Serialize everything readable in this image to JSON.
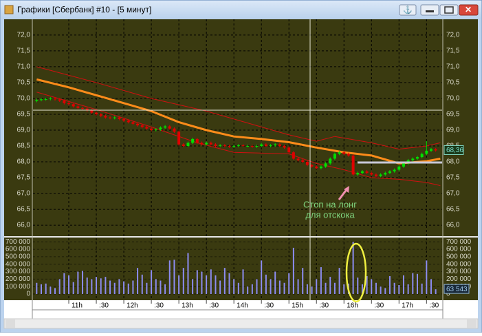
{
  "window": {
    "title": "Графики [Сбербанк] #10 - [5 минут]"
  },
  "annotation": {
    "lines": [
      "Стоп на лонг",
      "для отскока"
    ]
  },
  "chart_data": [
    {
      "type": "candlestick",
      "color_up": "#00e000",
      "color_down": "#e00000",
      "last_label": "68,36",
      "x": [
        625,
        630,
        635,
        640,
        645,
        650,
        655,
        660,
        665,
        670,
        675,
        680,
        685,
        690,
        695,
        700,
        705,
        710,
        715,
        720,
        725,
        730,
        735,
        740,
        745,
        750,
        755,
        760,
        765,
        770,
        775,
        780,
        785,
        790,
        795,
        800,
        805,
        810,
        815,
        820,
        825,
        830,
        835,
        840,
        845,
        850,
        855,
        860,
        865,
        870,
        875,
        880,
        885,
        890,
        895,
        900,
        905,
        910,
        915,
        920,
        925,
        930,
        935,
        940,
        945,
        950,
        955,
        960,
        965,
        970,
        975,
        980,
        985,
        990,
        995,
        1000,
        1005,
        1010,
        1015,
        1020,
        1025,
        1030,
        1035,
        1040,
        1045,
        1050,
        1055,
        1060
      ],
      "open": [
        69.92,
        69.95,
        69.97,
        69.98,
        70.0,
        69.97,
        69.93,
        69.85,
        69.82,
        69.75,
        69.7,
        69.68,
        69.62,
        69.55,
        69.5,
        69.45,
        69.4,
        69.38,
        69.4,
        69.35,
        69.3,
        69.25,
        69.2,
        69.15,
        69.1,
        69.05,
        69.0,
        69.02,
        69.08,
        69.12,
        69.05,
        68.95,
        68.55,
        68.5,
        68.6,
        68.72,
        68.6,
        68.55,
        68.6,
        68.55,
        68.5,
        68.52,
        68.5,
        68.48,
        68.5,
        68.52,
        68.5,
        68.5,
        68.48,
        68.5,
        68.55,
        68.5,
        68.52,
        68.55,
        68.5,
        68.45,
        68.3,
        68.1,
        68.05,
        68.0,
        67.9,
        67.85,
        67.8,
        67.85,
        67.95,
        68.1,
        68.25,
        68.3,
        68.25,
        68.2,
        67.6,
        67.65,
        67.7,
        67.65,
        67.6,
        67.55,
        67.6,
        67.65,
        67.7,
        67.75,
        67.85,
        67.95,
        68.05,
        68.1,
        68.15,
        68.25,
        68.35,
        68.4
      ],
      "high": [
        69.99,
        70.01,
        70.02,
        70.04,
        70.04,
        70.01,
        69.97,
        69.89,
        69.86,
        69.79,
        69.74,
        69.72,
        69.66,
        69.59,
        69.54,
        69.49,
        69.44,
        69.44,
        69.44,
        69.39,
        69.34,
        69.29,
        69.24,
        69.19,
        69.14,
        69.09,
        69.06,
        69.12,
        69.16,
        69.16,
        69.09,
        68.99,
        68.59,
        68.64,
        68.76,
        68.76,
        68.64,
        68.64,
        68.64,
        68.59,
        68.56,
        68.56,
        68.54,
        68.54,
        68.56,
        68.56,
        68.54,
        68.54,
        68.54,
        68.59,
        68.59,
        68.56,
        68.59,
        68.59,
        68.54,
        68.49,
        68.34,
        68.14,
        68.09,
        68.04,
        67.94,
        67.89,
        67.89,
        67.99,
        68.14,
        68.29,
        68.34,
        68.34,
        68.29,
        68.24,
        67.69,
        67.74,
        67.74,
        67.69,
        67.64,
        67.64,
        67.69,
        67.74,
        67.79,
        67.89,
        67.99,
        68.09,
        68.14,
        68.19,
        68.29,
        68.65,
        68.44,
        68.44
      ],
      "low": [
        69.88,
        69.91,
        69.93,
        69.94,
        69.93,
        69.89,
        69.81,
        69.78,
        69.71,
        69.66,
        69.64,
        69.58,
        69.51,
        69.46,
        69.41,
        69.36,
        69.34,
        69.34,
        69.31,
        69.26,
        69.21,
        69.16,
        69.11,
        69.06,
        69.01,
        68.96,
        68.96,
        68.98,
        69.04,
        69.01,
        68.91,
        68.51,
        68.46,
        68.46,
        68.56,
        68.56,
        68.51,
        68.51,
        68.51,
        68.46,
        68.46,
        68.46,
        68.44,
        68.44,
        68.46,
        68.46,
        68.46,
        68.44,
        68.44,
        68.46,
        68.46,
        68.46,
        68.48,
        68.46,
        68.41,
        68.26,
        68.06,
        68.01,
        67.96,
        67.86,
        67.81,
        67.76,
        67.76,
        67.81,
        67.91,
        68.06,
        68.21,
        68.21,
        68.16,
        67.56,
        67.56,
        67.61,
        67.61,
        67.56,
        67.51,
        67.51,
        67.56,
        67.61,
        67.66,
        67.71,
        67.81,
        67.91,
        68.01,
        68.06,
        68.11,
        68.21,
        68.31,
        68.32
      ],
      "close": [
        69.95,
        69.97,
        69.98,
        70.0,
        69.97,
        69.93,
        69.85,
        69.82,
        69.75,
        69.7,
        69.68,
        69.62,
        69.55,
        69.5,
        69.45,
        69.4,
        69.38,
        69.4,
        69.35,
        69.3,
        69.25,
        69.2,
        69.15,
        69.1,
        69.05,
        69.0,
        69.02,
        69.08,
        69.12,
        69.05,
        68.95,
        68.55,
        68.5,
        68.6,
        68.72,
        68.6,
        68.55,
        68.6,
        68.55,
        68.5,
        68.52,
        68.5,
        68.48,
        68.5,
        68.52,
        68.5,
        68.5,
        68.48,
        68.5,
        68.55,
        68.5,
        68.52,
        68.55,
        68.5,
        68.45,
        68.3,
        68.1,
        68.05,
        68.0,
        67.9,
        67.85,
        67.8,
        67.85,
        67.95,
        68.1,
        68.25,
        68.3,
        68.25,
        68.2,
        67.6,
        67.65,
        67.7,
        67.65,
        67.6,
        67.55,
        67.6,
        67.65,
        67.7,
        67.75,
        67.85,
        67.95,
        68.05,
        68.1,
        68.15,
        68.25,
        68.35,
        68.4,
        68.36
      ],
      "lines": [
        {
          "color": "#ff8c1a",
          "width": 3,
          "x": [
            625,
            660,
            690,
            720,
            750,
            780,
            810,
            840,
            870,
            900,
            930,
            960,
            990,
            1020,
            1050,
            1065
          ],
          "values": [
            70.6,
            70.35,
            70.1,
            69.85,
            69.6,
            69.25,
            69.0,
            68.8,
            68.72,
            68.62,
            68.45,
            68.3,
            68.2,
            67.95,
            68.02,
            68.1
          ]
        },
        {
          "color": "#d01010",
          "width": 1,
          "x": [
            625,
            690,
            750,
            810,
            870,
            900,
            930,
            950,
            990,
            1020,
            1050,
            1065
          ],
          "values": [
            71.0,
            70.5,
            70.0,
            69.6,
            69.1,
            68.85,
            68.65,
            68.8,
            68.6,
            68.4,
            68.5,
            68.6
          ]
        },
        {
          "color": "#d01010",
          "width": 1,
          "x": [
            625,
            690,
            750,
            800,
            840,
            900,
            930,
            960,
            990,
            1020,
            1050,
            1065
          ],
          "values": [
            70.2,
            69.65,
            69.1,
            68.6,
            68.3,
            68.25,
            67.95,
            67.75,
            67.5,
            67.45,
            67.35,
            67.25
          ]
        }
      ],
      "xlim": [
        621,
        1067
      ],
      "xticks": [
        {
          "value": 660,
          "label": "11h"
        },
        {
          "value": 690,
          "label": ":30"
        },
        {
          "value": 720,
          "label": "12h"
        },
        {
          "value": 750,
          "label": ":30"
        },
        {
          "value": 780,
          "label": "13h"
        },
        {
          "value": 810,
          "label": ":30"
        },
        {
          "value": 840,
          "label": "14h"
        },
        {
          "value": 870,
          "label": ":30"
        },
        {
          "value": 900,
          "label": "15h"
        },
        {
          "value": 930,
          "label": ":30"
        },
        {
          "value": 960,
          "label": "16h"
        },
        {
          "value": 990,
          "label": ":30"
        },
        {
          "value": 1020,
          "label": "17h"
        },
        {
          "value": 1050,
          "label": ":30"
        }
      ],
      "ylim": [
        65.72,
        72.41
      ],
      "yticks": [
        {
          "value": 66,
          "label": "66,0"
        },
        {
          "value": 66.5,
          "label": "66,5"
        },
        {
          "value": 67,
          "label": "67,0"
        },
        {
          "value": 67.5,
          "label": "67,5"
        },
        {
          "value": 68,
          "label": "68,0"
        },
        {
          "value": 68.5,
          "label": "68,5"
        },
        {
          "value": 69,
          "label": "69,0"
        },
        {
          "value": 69.5,
          "label": "69,5"
        },
        {
          "value": 70,
          "label": "70,0"
        },
        {
          "value": 70.5,
          "label": "70,5"
        },
        {
          "value": 71,
          "label": "71,0"
        },
        {
          "value": 71.5,
          "label": "71,5"
        },
        {
          "value": 72,
          "label": "72,0"
        }
      ],
      "grid": true
    },
    {
      "type": "bar",
      "color": "#8c8cf0",
      "last_label": "63 543",
      "values": [
        150000,
        130000,
        140000,
        100000,
        80000,
        200000,
        280000,
        250000,
        160000,
        300000,
        310000,
        220000,
        200000,
        230000,
        210000,
        230000,
        180000,
        150000,
        200000,
        170000,
        140000,
        180000,
        350000,
        260000,
        150000,
        320000,
        200000,
        180000,
        130000,
        450000,
        460000,
        250000,
        350000,
        550000,
        200000,
        320000,
        300000,
        250000,
        330000,
        250000,
        180000,
        350000,
        280000,
        200000,
        150000,
        330000,
        100000,
        130000,
        200000,
        450000,
        260000,
        200000,
        300000,
        180000,
        150000,
        280000,
        620000,
        200000,
        350000,
        130000,
        100000,
        200000,
        360000,
        150000,
        230000,
        150000,
        350000,
        130000,
        140000,
        700000,
        220000,
        130000,
        240000,
        200000,
        150000,
        100000,
        80000,
        240000,
        150000,
        120000,
        250000,
        130000,
        280000,
        270000,
        140000,
        450000,
        200000,
        63543
      ],
      "ylim": [
        0,
        730000
      ],
      "yticks": [
        0,
        {
          "value": 100000,
          "label": "100 000"
        },
        {
          "value": 200000,
          "label": "200 000"
        },
        {
          "value": 300000,
          "label": "300 000"
        },
        {
          "value": 400000,
          "label": "400 000"
        },
        {
          "value": 500000,
          "label": "500 000"
        },
        {
          "value": 600000,
          "label": "600 000"
        },
        {
          "value": 700000,
          "label": "700 000"
        }
      ],
      "grid": true
    }
  ]
}
